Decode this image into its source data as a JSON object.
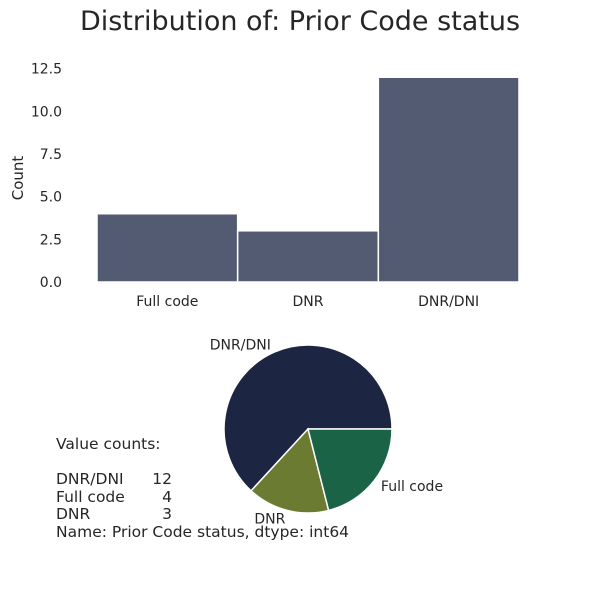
{
  "title": "Distribution of: Prior Code status",
  "chart_data": [
    {
      "type": "bar",
      "categories": [
        "Full code",
        "DNR",
        "DNR/DNI"
      ],
      "values": [
        4,
        3,
        12
      ],
      "ylabel": "Count",
      "xlabel": "",
      "ylim": [
        0,
        12.6
      ],
      "yticks": [
        "0.0",
        "2.5",
        "5.0",
        "7.5",
        "10.0",
        "12.5"
      ],
      "ytick_values": [
        0,
        2.5,
        5,
        7.5,
        10,
        12.5
      ],
      "grid": false,
      "colors": [
        "#525b71"
      ]
    },
    {
      "type": "pie",
      "labels": [
        "DNR/DNI",
        "DNR",
        "Full code"
      ],
      "values": [
        12,
        3,
        4
      ],
      "colors": [
        "#1c2541",
        "#6b7b32",
        "#1b6347"
      ]
    }
  ],
  "value_counts": {
    "heading": "Value counts:",
    "rows": [
      {
        "label": "DNR/DNI",
        "count": "12"
      },
      {
        "label": "Full code",
        "count": "4"
      },
      {
        "label": "DNR",
        "count": "3"
      }
    ],
    "footer": "Name: Prior Code status, dtype: int64"
  }
}
